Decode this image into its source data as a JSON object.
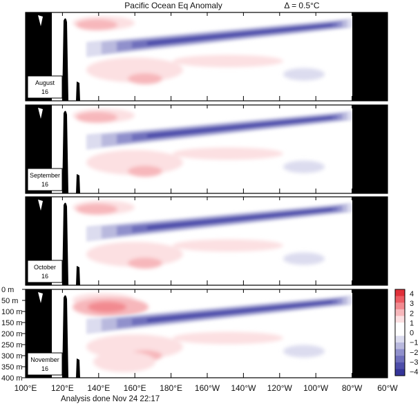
{
  "chart_data": {
    "type": "heatmap",
    "title": "Pacific Ocean Eq Anomaly",
    "contour_interval": "Δ = 0.5°C",
    "x_ticks": [
      "100°E",
      "120°E",
      "140°E",
      "160°E",
      "180°E",
      "160°W",
      "140°W",
      "120°W",
      "100°W",
      "80°W",
      "60°W"
    ],
    "x_range": [
      "100°E",
      "60°W"
    ],
    "y_ticks": [
      "0 m",
      "50 m",
      "100 m",
      "150 m",
      "200 m",
      "250 m",
      "300 m",
      "350 m",
      "400 m"
    ],
    "y_range_m": [
      0,
      400
    ],
    "colorbar": {
      "ticks": [
        "4",
        "3",
        "2",
        "1",
        "0",
        "−1",
        "−2",
        "−3",
        "−4"
      ],
      "colors": [
        "#e0303a",
        "#ec5a62",
        "#f28a90",
        "#f7b7bb",
        "#fce0e2",
        "#ffffff",
        "#ffffff",
        "#dcdcef",
        "#b9b9de",
        "#9090cc",
        "#6f6fbc",
        "#4e4eaa",
        "#353599"
      ]
    },
    "panels": [
      {
        "label_line1": "August",
        "label_line2": "16",
        "max_cold_anomaly": -3.5,
        "max_warm_anomaly": 1.5
      },
      {
        "label_line1": "September",
        "label_line2": "16",
        "max_cold_anomaly": -3.5,
        "max_warm_anomaly": 1.5
      },
      {
        "label_line1": "October",
        "label_line2": "16",
        "max_cold_anomaly": -3.5,
        "max_warm_anomaly": 1.5
      },
      {
        "label_line1": "November",
        "label_line2": "16",
        "max_cold_anomaly": -3.5,
        "max_warm_anomaly": 2.5
      }
    ],
    "footer": "Analysis done Nov 24 22:17"
  }
}
